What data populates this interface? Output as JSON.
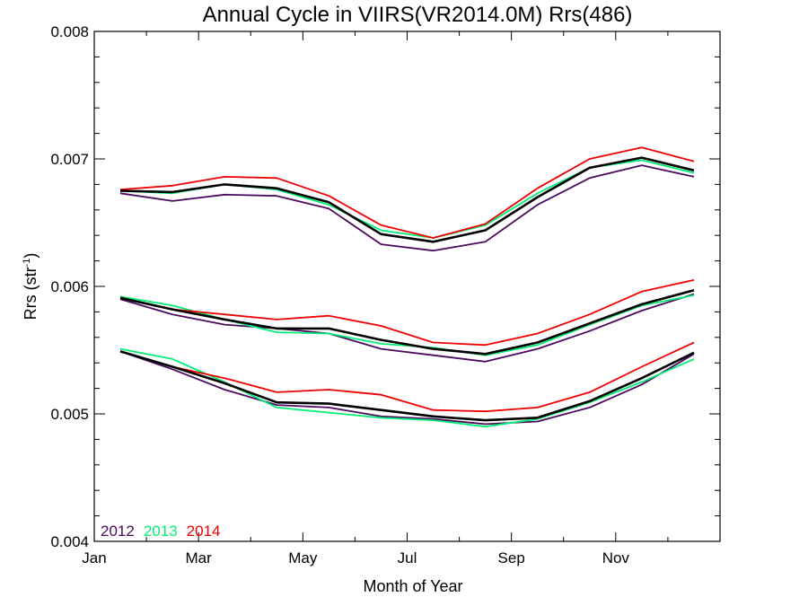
{
  "chart_data": {
    "type": "line",
    "title": "Annual Cycle in VIIRS(VR2014.0M) Rrs(486)",
    "xlabel": "Month of Year",
    "ylabel_base": "Rrs (str",
    "ylabel_sup": "-1",
    "ylabel_close": ")",
    "xlim": [
      0,
      12
    ],
    "ylim": [
      0.004,
      0.008
    ],
    "x_ticks": [
      {
        "value": 0,
        "label": "Jan"
      },
      {
        "value": 2,
        "label": "Mar"
      },
      {
        "value": 4,
        "label": "May"
      },
      {
        "value": 6,
        "label": "Jul"
      },
      {
        "value": 8,
        "label": "Sep"
      },
      {
        "value": 10,
        "label": "Nov"
      }
    ],
    "y_ticks": [
      {
        "value": 0.004,
        "label": "0.004"
      },
      {
        "value": 0.005,
        "label": "0.005"
      },
      {
        "value": 0.006,
        "label": "0.006"
      },
      {
        "value": 0.007,
        "label": "0.007"
      },
      {
        "value": 0.008,
        "label": "0.008"
      }
    ],
    "x": [
      0.5,
      1.5,
      2.5,
      3.5,
      4.5,
      5.5,
      6.5,
      7.5,
      8.5,
      9.5,
      10.5,
      11.5
    ],
    "legend": [
      {
        "label": "2012",
        "color": "#4b0a5e"
      },
      {
        "label": "2013",
        "color": "#00ee76"
      },
      {
        "label": "2014",
        "color": "#ee0000"
      }
    ],
    "groups": [
      {
        "series": [
          {
            "name": "2012",
            "color": "#4b0a5e",
            "values": [
              0.00673,
              0.00667,
              0.00672,
              0.00671,
              0.00661,
              0.00633,
              0.00628,
              0.00635,
              0.00664,
              0.00685,
              0.00695,
              0.00686
            ]
          },
          {
            "name": "2013",
            "color": "#00ee76",
            "values": [
              0.00675,
              0.00673,
              0.0068,
              0.00676,
              0.00664,
              0.00644,
              0.00638,
              0.00648,
              0.00673,
              0.00693,
              0.00699,
              0.00689
            ]
          },
          {
            "name": "2014",
            "color": "#ee0000",
            "values": [
              0.00676,
              0.00679,
              0.00686,
              0.00685,
              0.00671,
              0.00648,
              0.00638,
              0.00649,
              0.00677,
              0.007,
              0.00709,
              0.00698
            ]
          },
          {
            "name": "",
            "color": "#000000",
            "values": [
              0.00675,
              0.00674,
              0.0068,
              0.00677,
              0.00666,
              0.00641,
              0.00635,
              0.00644,
              0.0067,
              0.00693,
              0.00701,
              0.00691
            ]
          }
        ]
      },
      {
        "series": [
          {
            "name": "2012",
            "color": "#4b0a5e",
            "values": [
              0.0059,
              0.00578,
              0.0057,
              0.00567,
              0.00563,
              0.00551,
              0.00546,
              0.00541,
              0.00551,
              0.00565,
              0.00581,
              0.00594
            ]
          },
          {
            "name": "2013",
            "color": "#00ee76",
            "values": [
              0.00592,
              0.00585,
              0.00574,
              0.00564,
              0.00563,
              0.00555,
              0.00552,
              0.00546,
              0.00554,
              0.0057,
              0.00585,
              0.00593
            ]
          },
          {
            "name": "2014",
            "color": "#ee0000",
            "values": [
              0.00591,
              0.00582,
              0.00578,
              0.00574,
              0.00577,
              0.00569,
              0.00556,
              0.00554,
              0.00563,
              0.00578,
              0.00596,
              0.00605
            ]
          },
          {
            "name": "",
            "color": "#000000",
            "values": [
              0.00591,
              0.00582,
              0.00574,
              0.00567,
              0.00567,
              0.00558,
              0.00551,
              0.00547,
              0.00556,
              0.00571,
              0.00586,
              0.00597
            ]
          }
        ]
      },
      {
        "series": [
          {
            "name": "2012",
            "color": "#4b0a5e",
            "values": [
              0.00549,
              0.00535,
              0.00519,
              0.00507,
              0.00505,
              0.00498,
              0.00496,
              0.00492,
              0.00494,
              0.00505,
              0.00523,
              0.00547
            ]
          },
          {
            "name": "2013",
            "color": "#00ee76",
            "values": [
              0.00551,
              0.00543,
              0.00525,
              0.00505,
              0.00501,
              0.00497,
              0.00495,
              0.0049,
              0.00496,
              0.00509,
              0.00525,
              0.00543
            ]
          },
          {
            "name": "2014",
            "color": "#ee0000",
            "values": [
              0.00549,
              0.00537,
              0.00528,
              0.00517,
              0.00519,
              0.00515,
              0.00503,
              0.00502,
              0.00505,
              0.00517,
              0.00537,
              0.00556
            ]
          },
          {
            "name": "",
            "color": "#000000",
            "values": [
              0.00549,
              0.00537,
              0.00524,
              0.00509,
              0.00508,
              0.00503,
              0.00498,
              0.00495,
              0.00497,
              0.0051,
              0.00528,
              0.00548
            ]
          }
        ]
      }
    ]
  }
}
